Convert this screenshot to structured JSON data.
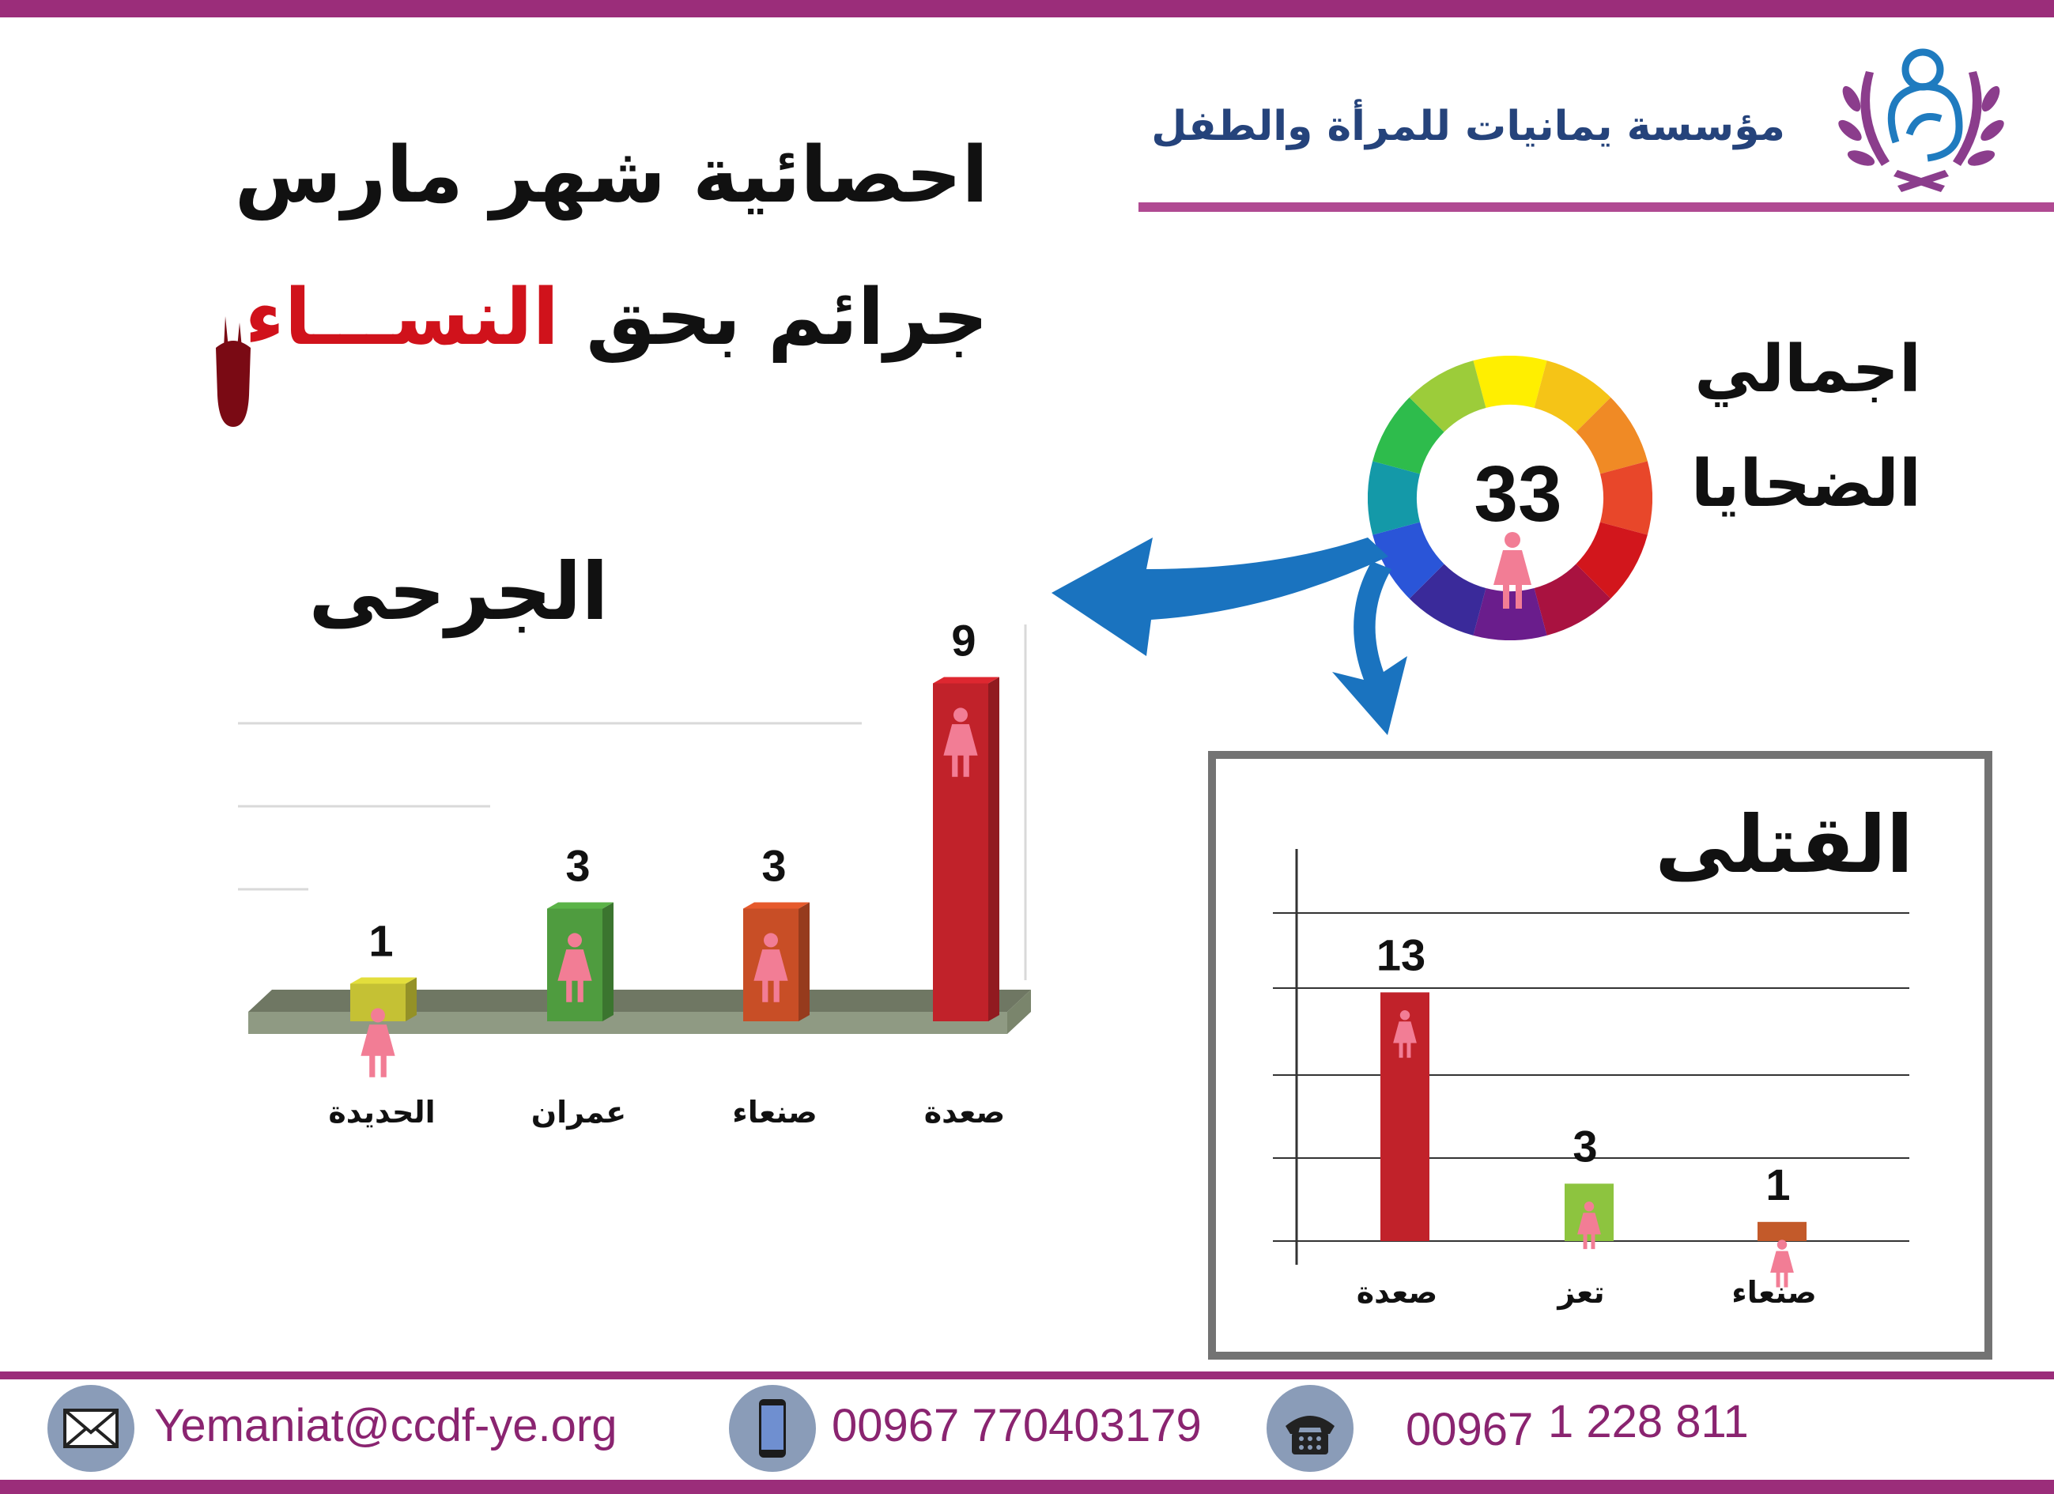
{
  "header": {
    "org_name": "مؤسسة  يمانيات للمرأة والطفل",
    "title_line1": "احصائية شهر مارس",
    "title_line2_prefix": "جرائم  بحق",
    "title_line2_highlight": "النســـاء"
  },
  "total": {
    "label_line1": "اجمالي",
    "label_line2": "الضحايا",
    "value": "33"
  },
  "chart_data": [
    {
      "type": "bar",
      "title": "الجرحى",
      "categories": [
        "الحديدة",
        "عمران",
        "صنعاء",
        "صعدة"
      ],
      "values": [
        1,
        3,
        3,
        9
      ],
      "colors": [
        "#c5c134",
        "#4f9c3f",
        "#c84e26",
        "#c1222a"
      ]
    },
    {
      "type": "bar",
      "title": "القتلى",
      "categories": [
        "صعدة",
        "تعز",
        "صنعاء"
      ],
      "values": [
        13,
        3,
        1
      ],
      "colors": [
        "#c1222a",
        "#8dc43f",
        "#c35a2a"
      ]
    }
  ],
  "footer": {
    "email": "Yemaniat@ccdf-ye.org",
    "mobile": "00967 770403179",
    "phone_code": "00967",
    "phone_number": "1 228 811"
  },
  "icons": {
    "logo": "mother-child-logo-icon",
    "email": "envelope-icon",
    "mobile": "smartphone-icon",
    "phone": "telephone-icon",
    "person": "female-icon",
    "arrow": "arrow-icon",
    "blood": "blood-drip-icon"
  }
}
